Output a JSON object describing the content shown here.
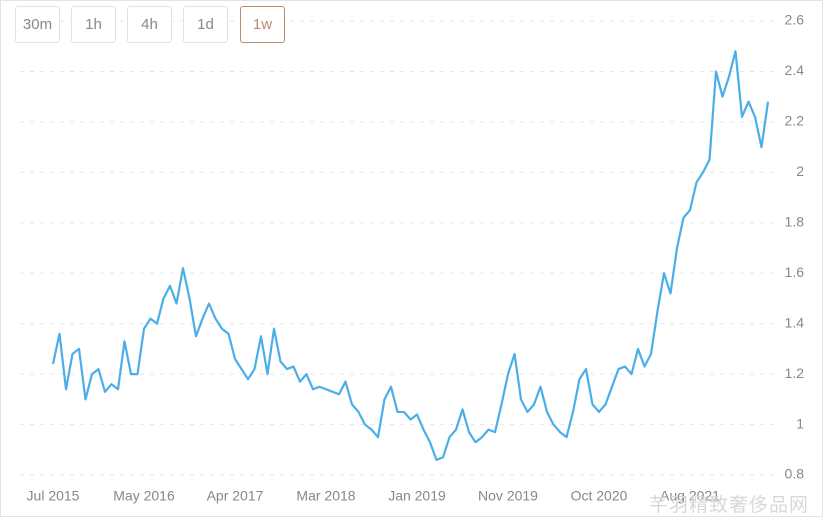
{
  "buttons": {
    "items": [
      "30m",
      "1h",
      "4h",
      "1d",
      "1w"
    ],
    "active": 4
  },
  "watermark": "芊羽精致奢侈品网",
  "chart_data": {
    "type": "line",
    "color": "#4baee8",
    "grid": true,
    "ylim": [
      0.75,
      2.6
    ],
    "yticks": [
      0.8,
      1.0,
      1.2,
      1.4,
      1.6,
      1.8,
      2.0,
      2.2,
      2.4,
      2.6
    ],
    "categories": [
      "Jul 2015",
      null,
      null,
      null,
      null,
      null,
      null,
      null,
      null,
      null,
      null,
      null,
      null,
      null,
      "May 2016",
      null,
      null,
      null,
      null,
      null,
      null,
      null,
      null,
      null,
      null,
      null,
      null,
      null,
      "Apr 2017",
      null,
      null,
      null,
      null,
      null,
      null,
      null,
      null,
      null,
      null,
      null,
      null,
      null,
      "Mar 2018",
      null,
      null,
      null,
      null,
      null,
      null,
      null,
      null,
      null,
      null,
      null,
      null,
      null,
      "Jan 2019",
      null,
      null,
      null,
      null,
      null,
      null,
      null,
      null,
      null,
      null,
      null,
      null,
      null,
      "Nov 2019",
      null,
      null,
      null,
      null,
      null,
      null,
      null,
      null,
      null,
      null,
      null,
      null,
      null,
      "Oct 2020",
      null,
      null,
      null,
      null,
      null,
      null,
      null,
      null,
      null,
      null,
      null,
      null,
      null,
      "Aug 2021",
      null,
      null,
      null,
      null,
      null,
      null,
      null,
      null,
      null,
      null,
      null,
      null
    ],
    "values": [
      1.24,
      1.36,
      1.14,
      1.28,
      1.3,
      1.1,
      1.2,
      1.22,
      1.13,
      1.16,
      1.14,
      1.33,
      1.2,
      1.2,
      1.38,
      1.42,
      1.4,
      1.5,
      1.55,
      1.48,
      1.62,
      1.5,
      1.35,
      1.42,
      1.48,
      1.42,
      1.38,
      1.36,
      1.26,
      1.22,
      1.18,
      1.22,
      1.35,
      1.2,
      1.38,
      1.25,
      1.22,
      1.23,
      1.17,
      1.2,
      1.14,
      1.15,
      1.14,
      1.13,
      1.12,
      1.17,
      1.08,
      1.05,
      1.0,
      0.98,
      0.95,
      1.1,
      1.15,
      1.05,
      1.05,
      1.02,
      1.04,
      0.98,
      0.93,
      0.86,
      0.87,
      0.95,
      0.98,
      1.06,
      0.97,
      0.93,
      0.95,
      0.98,
      0.97,
      1.08,
      1.2,
      1.28,
      1.1,
      1.05,
      1.08,
      1.15,
      1.05,
      1.0,
      0.97,
      0.95,
      1.05,
      1.18,
      1.22,
      1.08,
      1.05,
      1.08,
      1.15,
      1.22,
      1.23,
      1.2,
      1.3,
      1.23,
      1.28,
      1.45,
      1.6,
      1.52,
      1.7,
      1.82,
      1.85,
      1.96,
      2.0,
      2.05,
      2.4,
      2.3,
      2.38,
      2.48,
      2.22,
      2.28,
      2.22,
      2.1,
      2.28
    ]
  }
}
